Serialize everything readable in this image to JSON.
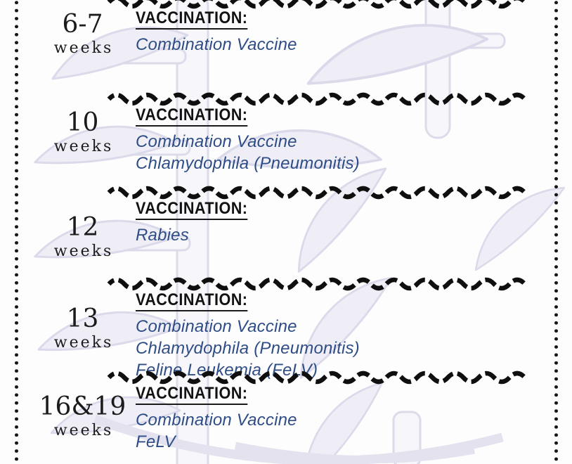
{
  "labels": {
    "vaccination_heading": "VACCINATION:"
  },
  "rows": [
    {
      "age": "6-7",
      "unit": "weeks",
      "vaccines": [
        "Combination Vaccine"
      ]
    },
    {
      "age": "10",
      "unit": "weeks",
      "vaccines": [
        "Combination Vaccine",
        "Chlamydophila (Pneumonitis)"
      ]
    },
    {
      "age": "12",
      "unit": "weeks",
      "vaccines": [
        "Rabies"
      ]
    },
    {
      "age": "13",
      "unit": "weeks",
      "vaccines": [
        "Combination Vaccine",
        "Chlamydophila (Pneumonitis)",
        "Feline Leukemia (FeLV)"
      ]
    },
    {
      "age": "16&19",
      "unit": "weeks",
      "vaccines": [
        "Combination Vaccine",
        "FeLV"
      ]
    }
  ],
  "colors": {
    "heading_text": "#121212",
    "vaccine_blue": "#2e4d86",
    "divider_black": "#0f0f0f",
    "border_dot": "#161616",
    "watermark_lavender": "#dbdaea",
    "background": "#fdfdfe"
  },
  "icons": {
    "watermark": "fishbone-watermark",
    "divider": "wavy-dashed-line",
    "side_borders": "dotted-line"
  }
}
